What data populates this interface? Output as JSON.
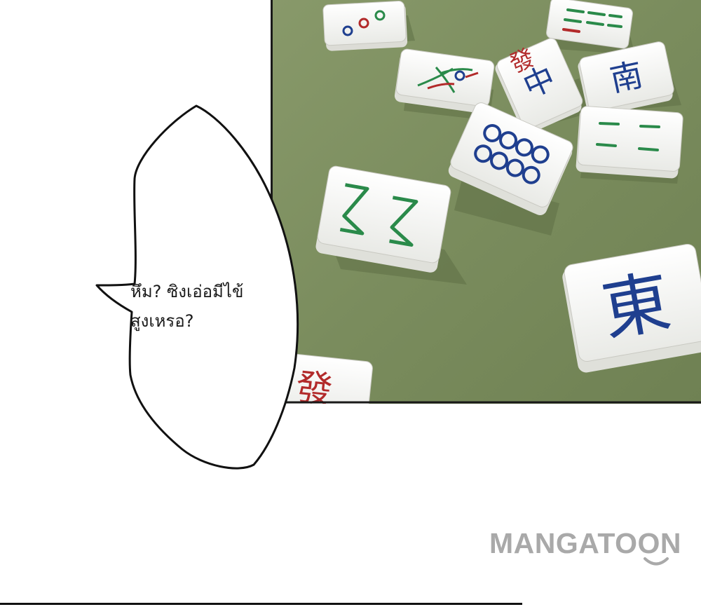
{
  "speech_bubble": {
    "line1": "หึม? ซิงเอ่อมีไข้",
    "line2": "สูงเหรอ?"
  },
  "watermark": {
    "text": "MANGATOON",
    "color": "#a9a9a9"
  },
  "panel": {
    "table_color": "#7b8f5f",
    "border_color": "#1a1a1a",
    "tiles": [
      {
        "name": "tile-three-circles",
        "face": "3 circles"
      },
      {
        "name": "tile-six-bamboo",
        "face": "6 bamboo"
      },
      {
        "name": "tile-one-bamboo-bird",
        "face": "1 bamboo (bird)"
      },
      {
        "name": "tile-red-dragon",
        "face": "中"
      },
      {
        "name": "tile-south-wind",
        "face": "南"
      },
      {
        "name": "tile-four-bamboo",
        "face": "4 bamboo"
      },
      {
        "name": "tile-eight-circles",
        "face": "8 circles"
      },
      {
        "name": "tile-bamboo-zigzag",
        "face": "bamboo"
      },
      {
        "name": "tile-east-wind",
        "face": "東"
      },
      {
        "name": "tile-partial-red",
        "face": "red character"
      }
    ]
  }
}
